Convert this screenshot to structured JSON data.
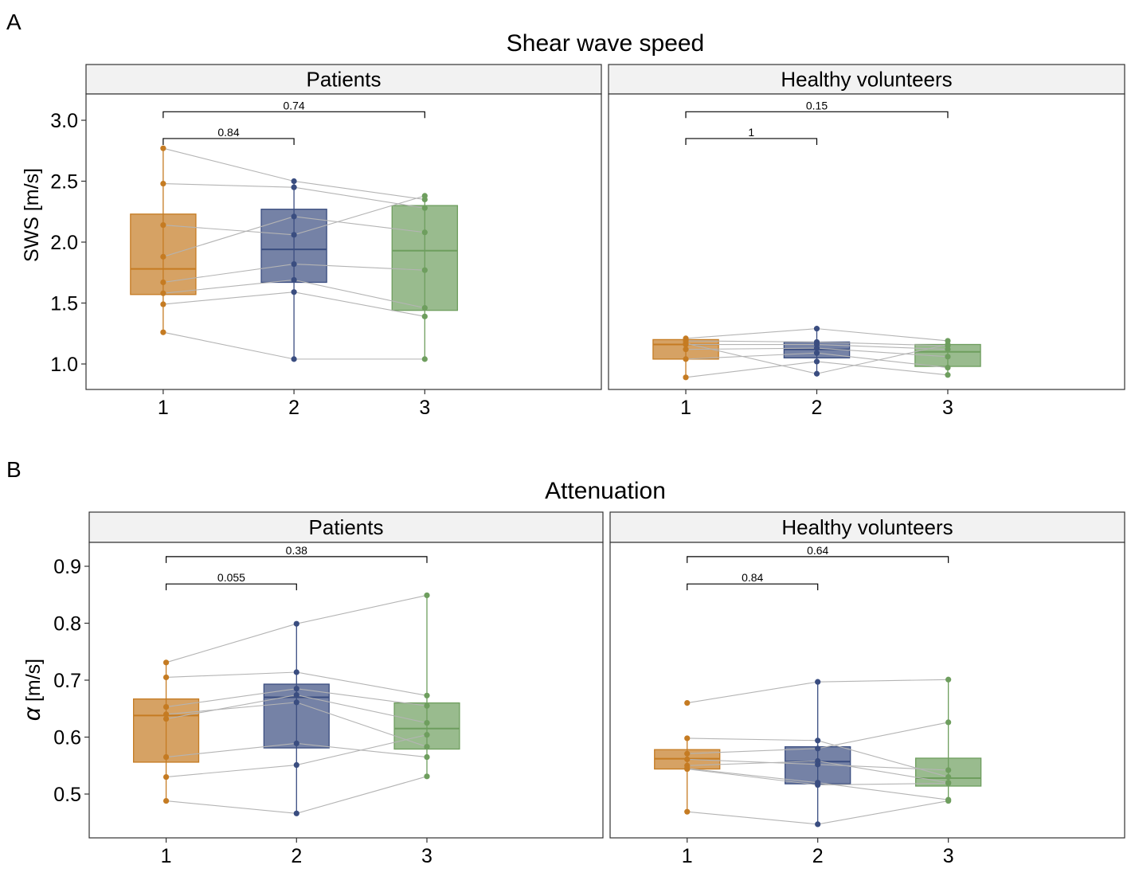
{
  "colors": {
    "group1": "#C57B22",
    "group2": "#3A4D80",
    "group3": "#6E9E5E",
    "strip_bg": "#F2F2F2",
    "line": "#B4B4B4"
  },
  "chart_data": [
    {
      "type": "box",
      "panel_label": "A",
      "title": "Shear wave speed",
      "ylabel": "SWS [m/s]",
      "ylim": [
        0.79,
        3.2
      ],
      "yticks": [
        "1.0",
        "1.5",
        "2.0",
        "2.5",
        "3.0"
      ],
      "categories": [
        "1",
        "2",
        "3"
      ],
      "facets": [
        {
          "name": "Patients",
          "points": [
            [
              2.77,
              2.5,
              2.35
            ],
            [
              2.48,
              2.45,
              2.28
            ],
            [
              2.14,
              2.06,
              2.38
            ],
            [
              1.88,
              2.21,
              2.08
            ],
            [
              1.67,
              1.82,
              1.77
            ],
            [
              1.58,
              1.69,
              1.46
            ],
            [
              1.49,
              1.59,
              1.39
            ],
            [
              1.26,
              1.04,
              1.04
            ]
          ],
          "boxes": [
            {
              "q1": 1.57,
              "median": 1.78,
              "q3": 2.23,
              "lo": 1.26,
              "hi": 2.77
            },
            {
              "q1": 1.67,
              "median": 1.94,
              "q3": 2.27,
              "lo": 1.04,
              "hi": 2.5
            },
            {
              "q1": 1.44,
              "median": 1.93,
              "q3": 2.3,
              "lo": 1.04,
              "hi": 2.38
            }
          ],
          "brackets": [
            {
              "from": 1,
              "to": 3,
              "label": "0.74",
              "y": 3.07
            },
            {
              "from": 1,
              "to": 2,
              "label": "0.84",
              "y": 2.85
            }
          ]
        },
        {
          "name": "Healthy volunteers",
          "points": [
            [
              1.21,
              1.29,
              1.19
            ],
            [
              1.19,
              1.18,
              1.15
            ],
            [
              1.16,
              1.16,
              1.12
            ],
            [
              1.12,
              1.13,
              1.06
            ],
            [
              1.04,
              1.09,
              0.97
            ],
            [
              0.89,
              1.02,
              0.91
            ],
            [
              1.17,
              0.92,
              1.16
            ]
          ],
          "boxes": [
            {
              "q1": 1.04,
              "median": 1.16,
              "q3": 1.2,
              "lo": 0.89,
              "hi": 1.22
            },
            {
              "q1": 1.05,
              "median": 1.12,
              "q3": 1.18,
              "lo": 0.92,
              "hi": 1.29
            },
            {
              "q1": 0.98,
              "median": 1.1,
              "q3": 1.16,
              "lo": 0.91,
              "hi": 1.19
            }
          ],
          "brackets": [
            {
              "from": 1,
              "to": 3,
              "label": "0.15",
              "y": 3.07
            },
            {
              "from": 1,
              "to": 2,
              "label": "1",
              "y": 2.85
            }
          ]
        }
      ]
    },
    {
      "type": "box",
      "panel_label": "B",
      "title": "Attenuation",
      "ylabel_symbol": "α",
      "ylabel": "[m/s]",
      "ylim": [
        0.44,
        0.94
      ],
      "yticks": [
        "0.5",
        "0.6",
        "0.7",
        "0.8",
        "0.9"
      ],
      "categories": [
        "1",
        "2",
        "3"
      ],
      "facets": [
        {
          "name": "Patients",
          "points": [
            [
              0.731,
              0.799,
              0.849
            ],
            [
              0.705,
              0.714,
              0.673
            ],
            [
              0.653,
              0.685,
              0.655
            ],
            [
              0.64,
              0.661,
              0.583
            ],
            [
              0.632,
              0.674,
              0.625
            ],
            [
              0.565,
              0.589,
              0.565
            ],
            [
              0.53,
              0.551,
              0.604
            ],
            [
              0.488,
              0.466,
              0.531
            ]
          ],
          "boxes": [
            {
              "q1": 0.556,
              "median": 0.638,
              "q3": 0.667,
              "lo": 0.488,
              "hi": 0.731
            },
            {
              "q1": 0.581,
              "median": 0.67,
              "q3": 0.693,
              "lo": 0.466,
              "hi": 0.799
            },
            {
              "q1": 0.579,
              "median": 0.615,
              "q3": 0.66,
              "lo": 0.531,
              "hi": 0.849
            }
          ],
          "brackets": [
            {
              "from": 1,
              "to": 3,
              "label": "0.38",
              "y": 0.917
            },
            {
              "from": 1,
              "to": 2,
              "label": "0.055",
              "y": 0.869
            }
          ]
        },
        {
          "name": "Healthy volunteers",
          "points": [
            [
              0.66,
              0.697,
              0.701
            ],
            [
              0.598,
              0.594,
              0.53
            ],
            [
              0.571,
              0.58,
              0.626
            ],
            [
              0.561,
              0.552,
              0.542
            ],
            [
              0.55,
              0.558,
              0.52
            ],
            [
              0.544,
              0.516,
              0.519
            ],
            [
              0.545,
              0.52,
              0.49
            ],
            [
              0.469,
              0.447,
              0.488
            ]
          ],
          "boxes": [
            {
              "q1": 0.544,
              "median": 0.562,
              "q3": 0.578,
              "lo": 0.469,
              "hi": 0.598
            },
            {
              "q1": 0.518,
              "median": 0.557,
              "q3": 0.583,
              "lo": 0.447,
              "hi": 0.697
            },
            {
              "q1": 0.514,
              "median": 0.528,
              "q3": 0.563,
              "lo": 0.488,
              "hi": 0.701
            }
          ],
          "brackets": [
            {
              "from": 1,
              "to": 3,
              "label": "0.64",
              "y": 0.917
            },
            {
              "from": 1,
              "to": 2,
              "label": "0.84",
              "y": 0.869
            }
          ]
        }
      ]
    }
  ]
}
